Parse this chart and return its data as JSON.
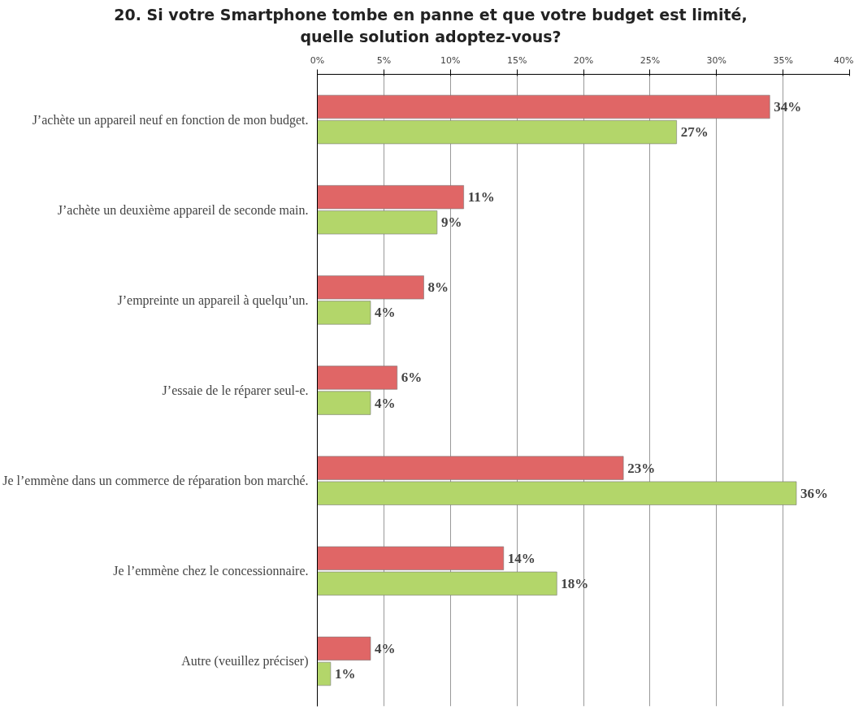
{
  "chart_data": {
    "type": "bar",
    "orientation": "horizontal",
    "title": "20. Si votre Smartphone tombe en panne et que votre budget est limité, quelle solution adoptez-vous?",
    "categories": [
      "J’achète un appareil neuf en fonction de mon budget.",
      "J’achète un deuxième appareil de seconde main.",
      "J’empreinte un appareil à quelqu’un.",
      "J’essaie de le réparer seul-e.",
      "Je l’emmène dans un commerce de réparation bon marché.",
      "Je l’emmène chez le concessionnaire.",
      "Autre (veuillez préciser)"
    ],
    "series": [
      {
        "color": "#e06666",
        "values": [
          34,
          11,
          8,
          6,
          23,
          14,
          4
        ],
        "value_labels": [
          "34%",
          "11%",
          "8%",
          "6%",
          "23%",
          "14%",
          "4%"
        ]
      },
      {
        "color": "#b3d66a",
        "values": [
          27,
          9,
          4,
          4,
          36,
          18,
          1
        ],
        "value_labels": [
          "27%",
          "9%",
          "4%",
          "4%",
          "36%",
          "18%",
          "1%"
        ]
      }
    ],
    "xlim": [
      0,
      40
    ],
    "xticks": [
      {
        "value": 0,
        "label": "0%"
      },
      {
        "value": 5,
        "label": "5%"
      },
      {
        "value": 10,
        "label": "10%"
      },
      {
        "value": 15,
        "label": "15%"
      },
      {
        "value": 20,
        "label": "20%"
      },
      {
        "value": 25,
        "label": "25%"
      },
      {
        "value": 30,
        "label": "30%"
      },
      {
        "value": 35,
        "label": "35%"
      },
      {
        "value": 40,
        "label": "40%"
      }
    ],
    "grid": "x"
  }
}
